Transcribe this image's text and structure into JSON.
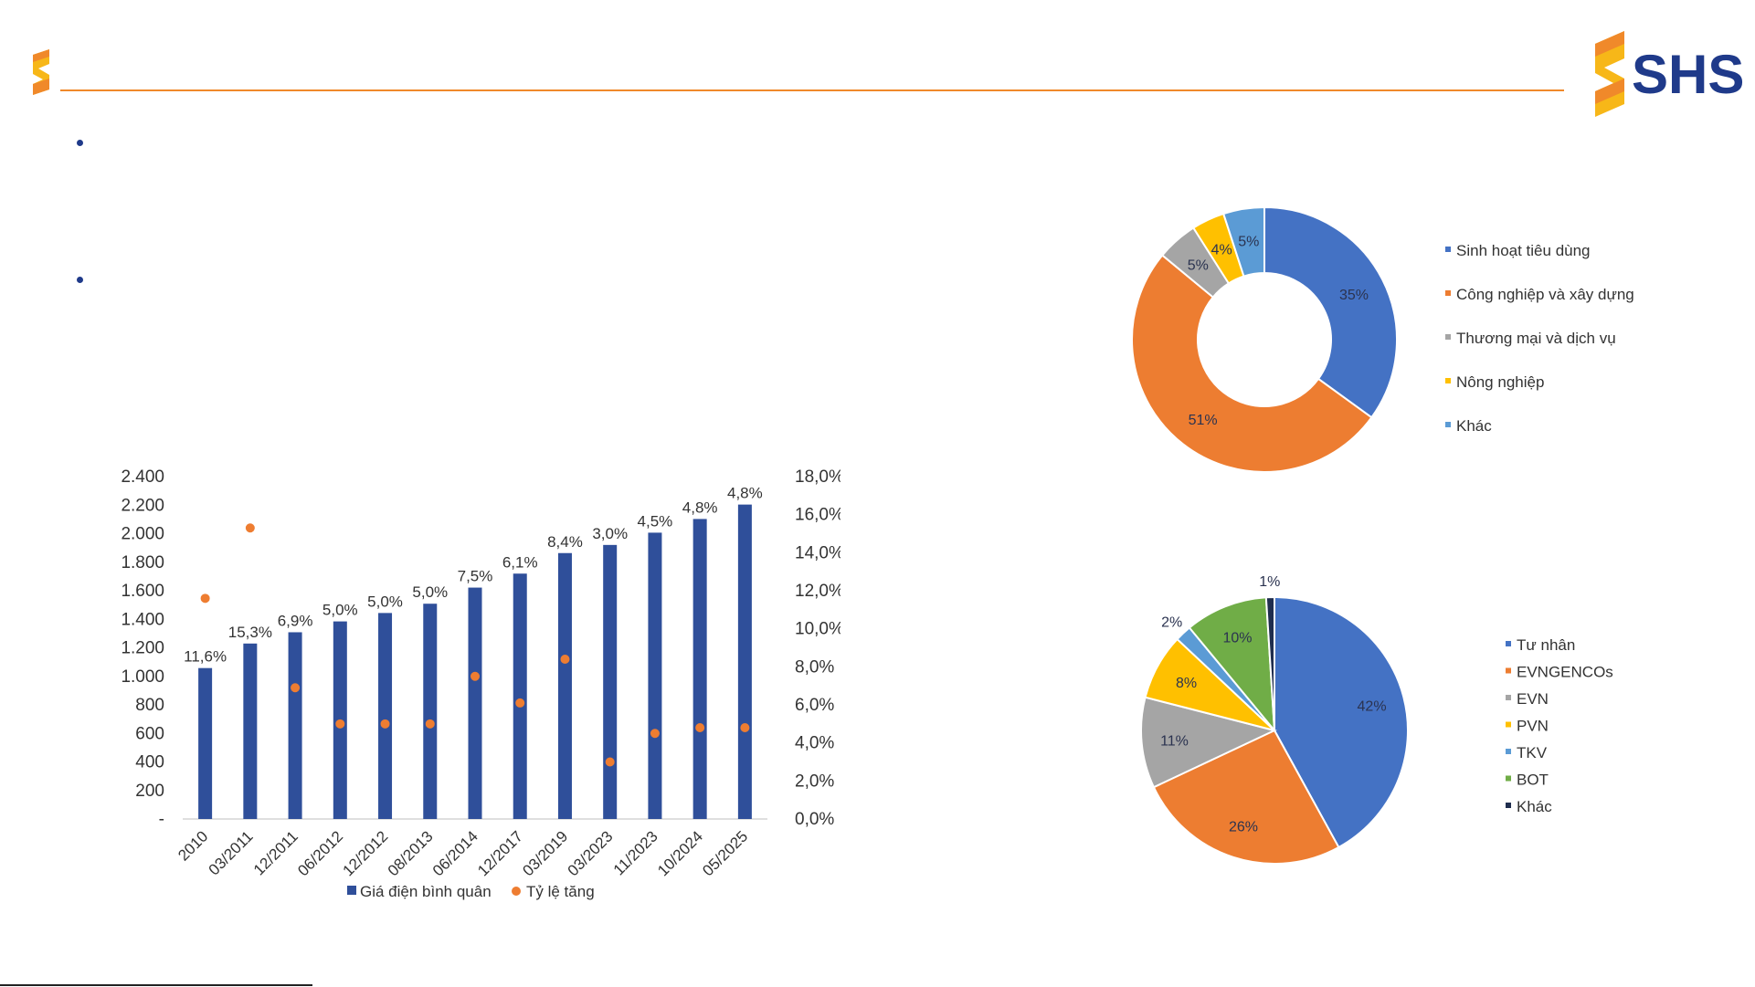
{
  "brand": {
    "name": "SHS",
    "colors": {
      "orange": "#f0892a",
      "yellow": "#f7b718",
      "navy": "#1f3a8a"
    }
  },
  "bullets": [
    {
      "icon": "bullet-dot"
    },
    {
      "icon": "bullet-dot"
    }
  ],
  "chart_data": [
    {
      "type": "bar",
      "categories": [
        "2010",
        "03/2011",
        "12/2011",
        "06/2012",
        "12/2012",
        "08/2013",
        "06/2014",
        "12/2017",
        "03/2019",
        "03/2023",
        "11/2023",
        "10/2024",
        "05/2025"
      ],
      "series": [
        {
          "name": "Giá điện bình quân",
          "type": "bar",
          "axis": "left",
          "color": "#2f4f9a",
          "values": [
            1058,
            1230,
            1309,
            1385,
            1444,
            1509,
            1622,
            1720,
            1864,
            1921,
            2007,
            2103,
            2204
          ]
        },
        {
          "name": "Tỷ lệ tăng",
          "type": "scatter",
          "axis": "right",
          "color": "#ee7d31",
          "values": [
            11.6,
            15.3,
            6.9,
            5.0,
            5.0,
            5.0,
            7.5,
            6.1,
            8.4,
            3.0,
            4.5,
            4.8,
            4.8
          ],
          "labels": [
            "11,6%",
            "15,3%",
            "6,9%",
            "5,0%",
            "5,0%",
            "5,0%",
            "7,5%",
            "6,1%",
            "8,4%",
            "3,0%",
            "4,5%",
            "4,8%",
            "4,8%"
          ]
        }
      ],
      "y_left": {
        "min": 0,
        "max": 2400,
        "ticks": [
          "-",
          "200",
          "400",
          "600",
          "800",
          "1.000",
          "1.200",
          "1.400",
          "1.600",
          "1.800",
          "2.000",
          "2.200",
          "2.400"
        ]
      },
      "y_right": {
        "min": 0,
        "max": 18,
        "ticks": [
          "0,0%",
          "2,0%",
          "4,0%",
          "6,0%",
          "8,0%",
          "10,0%",
          "12,0%",
          "14,0%",
          "16,0%",
          "18,0%"
        ]
      },
      "grid": false,
      "legend": "bottom"
    },
    {
      "type": "pie",
      "donut": true,
      "slices": [
        {
          "label": "Sinh hoạt tiêu dùng",
          "value": 35,
          "text": "35%",
          "color": "#4472c4"
        },
        {
          "label": "Công nghiệp và xây dựng",
          "value": 51,
          "text": "51%",
          "color": "#ed7d31"
        },
        {
          "label": "Thương mại và dịch vụ",
          "value": 5,
          "text": "5%",
          "color": "#a5a5a5"
        },
        {
          "label": "Nông nghiệp",
          "value": 4,
          "text": "4%",
          "color": "#ffc000"
        },
        {
          "label": "Khác",
          "value": 5,
          "text": "5%",
          "color": "#5b9bd5"
        }
      ],
      "legend": "right"
    },
    {
      "type": "pie",
      "slices": [
        {
          "label": "Tư nhân",
          "value": 42,
          "text": "42%",
          "color": "#4472c4"
        },
        {
          "label": "EVNGENCOs",
          "value": 26,
          "text": "26%",
          "color": "#ed7d31"
        },
        {
          "label": "EVN",
          "value": 11,
          "text": "11%",
          "color": "#a5a5a5"
        },
        {
          "label": "PVN",
          "value": 8,
          "text": "8%",
          "color": "#ffc000"
        },
        {
          "label": "TKV",
          "value": 2,
          "text": "2%",
          "color": "#5b9bd5"
        },
        {
          "label": "BOT",
          "value": 10,
          "text": "10%",
          "color": "#70ad47"
        },
        {
          "label": "Khác",
          "value": 1,
          "text": "1%",
          "color": "#1f2d4e"
        }
      ],
      "legend": "right"
    }
  ]
}
